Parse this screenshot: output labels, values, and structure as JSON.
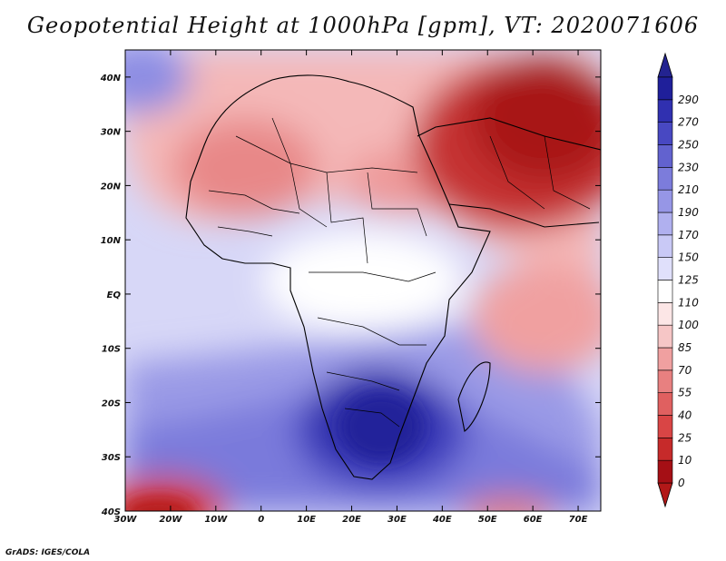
{
  "title": "Geopotential Height at 1000hPa [gpm], VT: 2020071606",
  "credit": "GrADS: IGES/COLA",
  "map": {
    "lon_range": [
      -30,
      75
    ],
    "lat_range": [
      -40,
      45
    ],
    "lon_ticks": [
      {
        "value": -30,
        "label": "30W"
      },
      {
        "value": -20,
        "label": "20W"
      },
      {
        "value": -10,
        "label": "10W"
      },
      {
        "value": 0,
        "label": "0"
      },
      {
        "value": 10,
        "label": "10E"
      },
      {
        "value": 20,
        "label": "20E"
      },
      {
        "value": 30,
        "label": "30E"
      },
      {
        "value": 40,
        "label": "40E"
      },
      {
        "value": 50,
        "label": "50E"
      },
      {
        "value": 60,
        "label": "60E"
      },
      {
        "value": 70,
        "label": "70E"
      }
    ],
    "lat_ticks": [
      {
        "value": 40,
        "label": "40N"
      },
      {
        "value": 30,
        "label": "30N"
      },
      {
        "value": 20,
        "label": "20N"
      },
      {
        "value": 10,
        "label": "10N"
      },
      {
        "value": 0,
        "label": "EQ"
      },
      {
        "value": -10,
        "label": "10S"
      },
      {
        "value": -20,
        "label": "20S"
      },
      {
        "value": -30,
        "label": "30S"
      },
      {
        "value": -40,
        "label": "40S"
      }
    ]
  },
  "colorbar": {
    "levels": [
      "0",
      "10",
      "25",
      "40",
      "55",
      "70",
      "85",
      "100",
      "110",
      "125",
      "150",
      "170",
      "190",
      "210",
      "230",
      "250",
      "270",
      "290"
    ],
    "colors": [
      "#a50f15",
      "#c62a2a",
      "#d94545",
      "#e06060",
      "#e88080",
      "#f0a0a0",
      "#f6c6c6",
      "#fce6e6",
      "#ffffff",
      "#e0e0fb",
      "#c9c9f6",
      "#b0b0ef",
      "#9696e6",
      "#7c7cdb",
      "#6262cf",
      "#4848c2",
      "#3030b0",
      "#1f1f9a"
    ],
    "below_color": "#b21818",
    "above_color": "#232390"
  }
}
